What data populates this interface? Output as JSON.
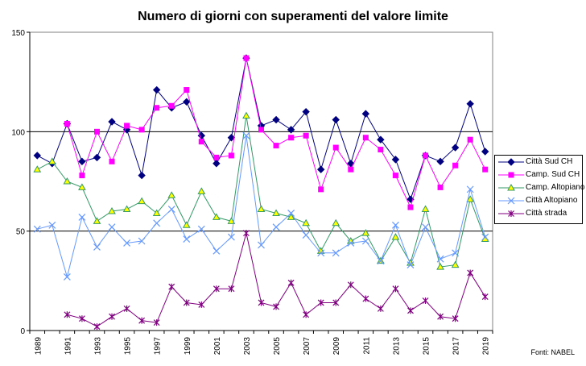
{
  "chart_data": {
    "type": "line",
    "title": "Numero di giorni con superamenti del valore limite",
    "xlabel": "",
    "ylabel": "",
    "ylim": [
      0,
      150
    ],
    "yticks": [
      0,
      50,
      100,
      150
    ],
    "grid": "horizontal at 50, 100",
    "legend_position": "right",
    "x": [
      1989,
      1990,
      1991,
      1992,
      1993,
      1994,
      1995,
      1996,
      1997,
      1998,
      1999,
      2000,
      2001,
      2002,
      2003,
      2004,
      2005,
      2006,
      2007,
      2008,
      2009,
      2010,
      2011,
      2012,
      2013,
      2014,
      2015,
      2016,
      2017,
      2018,
      2019
    ],
    "xtick_labels": [
      "1989",
      "1991",
      "1993",
      "1995",
      "1997",
      "1999",
      "2001",
      "2003",
      "2005",
      "2007",
      "2009",
      "2011",
      "2013",
      "2015",
      "2017",
      "2019"
    ],
    "series": [
      {
        "name": "Città Sud CH",
        "color": "#000080",
        "marker": "diamond",
        "values": [
          88,
          84,
          104,
          85,
          87,
          105,
          101,
          78,
          121,
          112,
          115,
          98,
          84,
          97,
          137,
          103,
          106,
          101,
          110,
          81,
          106,
          84,
          109,
          96,
          86,
          66,
          88,
          85,
          92,
          114,
          90
        ]
      },
      {
        "name": "Camp. Sud CH",
        "color": "#FF00FF",
        "marker": "square",
        "values": [
          null,
          null,
          104,
          78,
          100,
          85,
          103,
          101,
          112,
          113,
          121,
          95,
          87,
          88,
          137,
          101,
          93,
          97,
          98,
          71,
          92,
          81,
          97,
          91,
          78,
          62,
          88,
          72,
          83,
          96,
          81
        ]
      },
      {
        "name": "Camp. Altopiano",
        "color": "#339966",
        "marker": "triangle",
        "fill": "#FFFF00",
        "values": [
          81,
          85,
          75,
          72,
          55,
          60,
          61,
          65,
          59,
          68,
          53,
          70,
          57,
          55,
          108,
          61,
          59,
          57,
          54,
          40,
          54,
          45,
          49,
          35,
          47,
          34,
          61,
          32,
          33,
          66,
          46
        ]
      },
      {
        "name": "Città Altopiano",
        "color": "#6699FF",
        "marker": "x",
        "values": [
          51,
          53,
          27,
          57,
          42,
          52,
          44,
          45,
          54,
          61,
          46,
          51,
          40,
          47,
          98,
          43,
          52,
          59,
          48,
          39,
          39,
          44,
          45,
          35,
          53,
          33,
          52,
          36,
          39,
          71,
          47
        ]
      },
      {
        "name": "Città strada",
        "color": "#800080",
        "marker": "star",
        "values": [
          null,
          null,
          8,
          6,
          2,
          7,
          11,
          5,
          4,
          22,
          14,
          13,
          21,
          21,
          49,
          14,
          12,
          24,
          8,
          14,
          14,
          23,
          16,
          11,
          21,
          10,
          15,
          7,
          6,
          29,
          17
        ]
      }
    ]
  },
  "source": "Fonti: NABEL"
}
